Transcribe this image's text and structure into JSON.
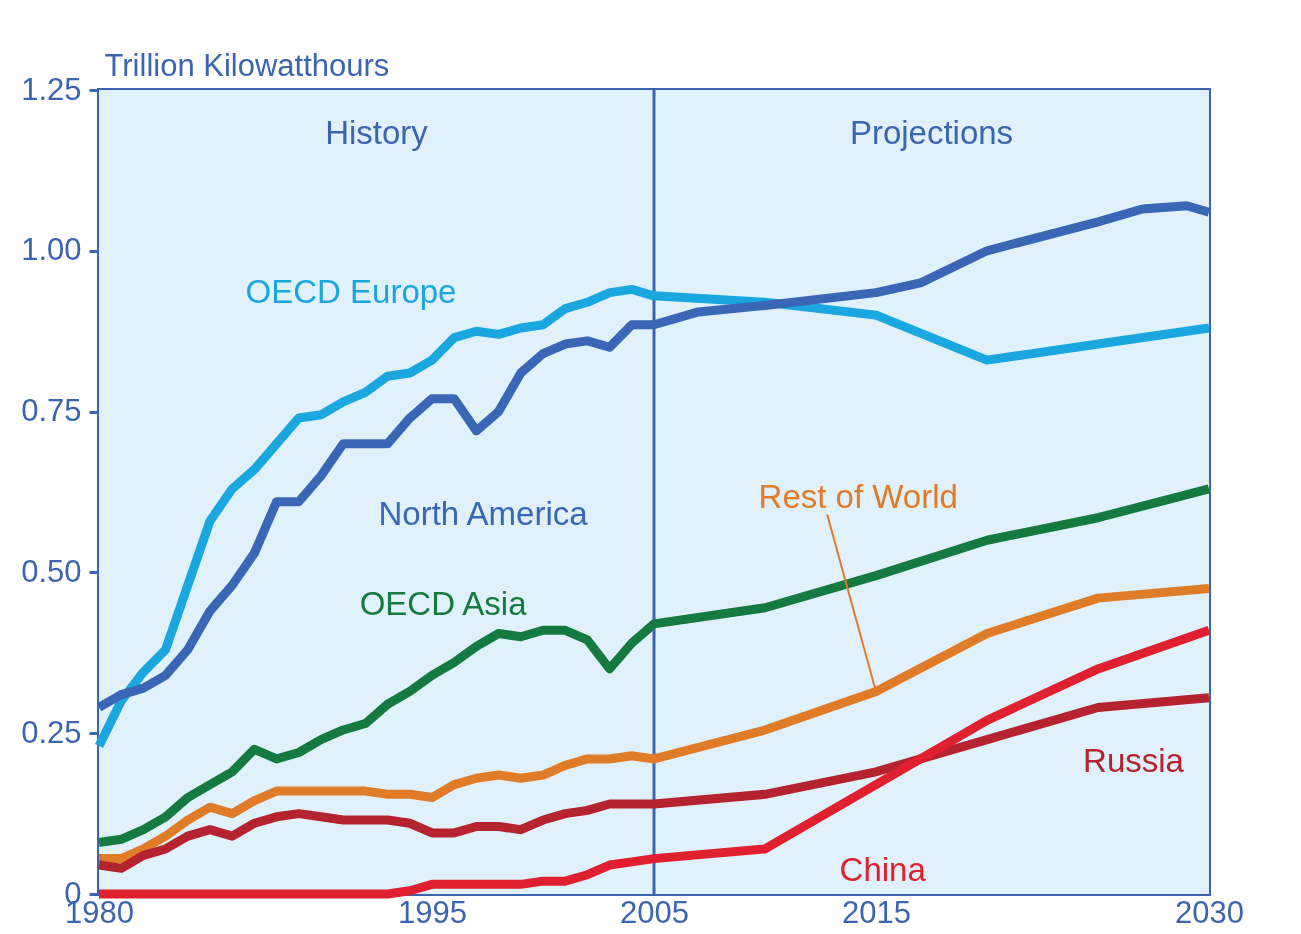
{
  "chart_data": {
    "type": "line",
    "ylabel": "Trillion Kilowatthours",
    "xlim": [
      1980,
      2030
    ],
    "ylim": [
      0,
      1.25
    ],
    "xticks": [
      1980,
      1995,
      2005,
      2015,
      2030
    ],
    "yticks": [
      {
        "value": 0,
        "label": "0"
      },
      0.25,
      {
        "value": 0.5,
        "label": "0.50"
      },
      0.75,
      {
        "value": 1,
        "label": "1.00"
      },
      1.25
    ],
    "ref_lines": [
      {
        "axis": "x",
        "value": 2005,
        "color": "#3c65b0"
      }
    ],
    "bands": [
      {
        "axis": "x",
        "from": 1980,
        "to": 2005,
        "label": "History",
        "color": "#e1f1fb"
      },
      {
        "axis": "x",
        "from": 2005,
        "to": 2030,
        "label": "Projections",
        "color": "#e1f1fb"
      }
    ],
    "line_style": "solid",
    "series": [
      {
        "name": "OECD Europe",
        "color": "#1aa7e0",
        "x": [
          1980,
          1981,
          1982,
          1983,
          1984,
          1985,
          1986,
          1987,
          1988,
          1989,
          1990,
          1991,
          1992,
          1993,
          1994,
          1995,
          1996,
          1997,
          1998,
          1999,
          2000,
          2001,
          2002,
          2003,
          2004,
          2005,
          2010,
          2015,
          2020,
          2025,
          2030
        ],
        "values": [
          0.23,
          0.3,
          0.345,
          0.38,
          0.48,
          0.58,
          0.63,
          0.66,
          0.7,
          0.74,
          0.745,
          0.765,
          0.78,
          0.805,
          0.81,
          0.83,
          0.865,
          0.875,
          0.87,
          0.88,
          0.885,
          0.91,
          0.92,
          0.935,
          0.94,
          0.93,
          0.92,
          0.9,
          0.83,
          0.855,
          0.88
        ]
      },
      {
        "name": "North America",
        "color": "#3a67b5",
        "x": [
          1980,
          1981,
          1982,
          1983,
          1984,
          1985,
          1986,
          1987,
          1988,
          1989,
          1990,
          1991,
          1992,
          1993,
          1994,
          1995,
          1996,
          1997,
          1998,
          1999,
          2000,
          2001,
          2002,
          2003,
          2004,
          2005,
          2007,
          2010,
          2015,
          2017,
          2020,
          2025,
          2027,
          2029,
          2030
        ],
        "values": [
          0.29,
          0.31,
          0.32,
          0.34,
          0.38,
          0.44,
          0.48,
          0.53,
          0.61,
          0.61,
          0.65,
          0.7,
          0.7,
          0.7,
          0.74,
          0.77,
          0.77,
          0.72,
          0.75,
          0.81,
          0.84,
          0.855,
          0.86,
          0.85,
          0.885,
          0.885,
          0.905,
          0.915,
          0.935,
          0.95,
          1.0,
          1.045,
          1.065,
          1.07,
          1.06
        ]
      },
      {
        "name": "OECD Asia",
        "color": "#157a3f",
        "x": [
          1980,
          1981,
          1982,
          1983,
          1984,
          1985,
          1986,
          1987,
          1988,
          1989,
          1990,
          1991,
          1992,
          1993,
          1994,
          1995,
          1996,
          1997,
          1998,
          1999,
          2000,
          2001,
          2002,
          2003,
          2004,
          2005,
          2010,
          2015,
          2020,
          2025,
          2030
        ],
        "values": [
          0.08,
          0.085,
          0.1,
          0.12,
          0.15,
          0.17,
          0.19,
          0.225,
          0.21,
          0.22,
          0.24,
          0.255,
          0.265,
          0.295,
          0.315,
          0.34,
          0.36,
          0.385,
          0.405,
          0.4,
          0.41,
          0.41,
          0.395,
          0.35,
          0.39,
          0.42,
          0.445,
          0.495,
          0.55,
          0.585,
          0.63
        ]
      },
      {
        "name": "Rest of World",
        "color": "#e07b28",
        "x": [
          1980,
          1981,
          1982,
          1983,
          1984,
          1985,
          1986,
          1987,
          1988,
          1989,
          1990,
          1991,
          1992,
          1993,
          1994,
          1995,
          1996,
          1997,
          1998,
          1999,
          2000,
          2001,
          2002,
          2003,
          2004,
          2005,
          2010,
          2015,
          2020,
          2025,
          2030
        ],
        "values": [
          0.055,
          0.055,
          0.07,
          0.09,
          0.115,
          0.135,
          0.125,
          0.145,
          0.16,
          0.16,
          0.16,
          0.16,
          0.16,
          0.155,
          0.155,
          0.15,
          0.17,
          0.18,
          0.185,
          0.18,
          0.185,
          0.2,
          0.21,
          0.21,
          0.215,
          0.21,
          0.255,
          0.315,
          0.405,
          0.46,
          0.475
        ]
      },
      {
        "name": "Russia",
        "color": "#b5232f",
        "x": [
          1980,
          1981,
          1982,
          1983,
          1984,
          1985,
          1986,
          1987,
          1988,
          1989,
          1990,
          1991,
          1992,
          1993,
          1994,
          1995,
          1996,
          1997,
          1998,
          1999,
          2000,
          2001,
          2002,
          2003,
          2004,
          2005,
          2010,
          2015,
          2020,
          2025,
          2030
        ],
        "values": [
          0.045,
          0.04,
          0.06,
          0.07,
          0.09,
          0.1,
          0.09,
          0.11,
          0.12,
          0.125,
          0.12,
          0.115,
          0.115,
          0.115,
          0.11,
          0.095,
          0.095,
          0.105,
          0.105,
          0.1,
          0.115,
          0.125,
          0.13,
          0.14,
          0.14,
          0.14,
          0.155,
          0.19,
          0.24,
          0.29,
          0.305
        ]
      },
      {
        "name": "China",
        "color": "#e0202f",
        "x": [
          1980,
          1993,
          1994,
          1995,
          1996,
          1997,
          1998,
          1999,
          2000,
          2001,
          2002,
          2003,
          2004,
          2005,
          2010,
          2015,
          2020,
          2025,
          2030
        ],
        "values": [
          0,
          0,
          0.005,
          0.015,
          0.015,
          0.015,
          0.015,
          0.015,
          0.02,
          0.02,
          0.03,
          0.045,
          0.05,
          0.055,
          0.07,
          0.17,
          0.27,
          0.35,
          0.41
        ]
      }
    ]
  }
}
